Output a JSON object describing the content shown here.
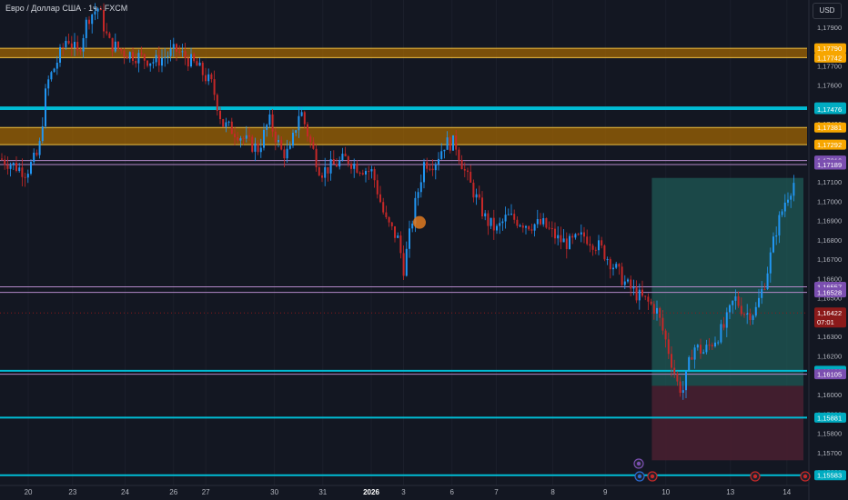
{
  "header": {
    "title": "Евро / Доллар США · 1ч · FXCM",
    "currency_button": "USD"
  },
  "colors": {
    "background": "#131722",
    "grid": "#1b1f2b",
    "bull": "#2196f3",
    "bear": "#c62828",
    "zone_fill": "#a86a00",
    "zone_border": "#f0c040",
    "cyan": "#00bcd4",
    "purple": "#b388c8",
    "target": "#1f5a56",
    "stop": "#4a2030",
    "price_tag": "#8b1a1a",
    "axis_text": "#b2b5be"
  },
  "axis": {
    "y_ticks": [
      "1,17900",
      "1,17700",
      "1,17600",
      "1,17400",
      "1,17300",
      "1,17100",
      "1,17000",
      "1,16900",
      "1,16800",
      "1,16700",
      "1,16600",
      "1,16500",
      "1,16300",
      "1,16200",
      "1,16000",
      "1,15900",
      "1,15800",
      "1,15700",
      "1,15600"
    ],
    "x_ticks": [
      "20",
      "23",
      "24",
      "26",
      "27",
      "30",
      "31",
      "2026",
      "3",
      "6",
      "7",
      "8",
      "9",
      "10",
      "13",
      "14"
    ]
  },
  "chart_data": {
    "type": "candlestick",
    "symbol": "EURUSD",
    "interval": "1h",
    "y_range": [
      1.1553,
      1.1804
    ],
    "current_price": 1.16422,
    "countdown": "07:01",
    "price_path": [
      [
        0,
        1.1722
      ],
      [
        0.03,
        1.1718
      ],
      [
        0.05,
        1.1715
      ],
      [
        0.075,
        1.1725
      ],
      [
        0.09,
        1.176
      ],
      [
        0.11,
        1.1772
      ],
      [
        0.13,
        1.1785
      ],
      [
        0.15,
        1.1776
      ],
      [
        0.17,
        1.1795
      ],
      [
        0.19,
        1.18
      ],
      [
        0.21,
        1.1782
      ],
      [
        0.24,
        1.1777
      ],
      [
        0.265,
        1.1775
      ],
      [
        0.3,
        1.1772
      ],
      [
        0.34,
        1.1778
      ],
      [
        0.38,
        1.177
      ],
      [
        0.41,
        1.176
      ],
      [
        0.43,
        1.174
      ],
      [
        0.46,
        1.1735
      ],
      [
        0.48,
        1.173
      ],
      [
        0.5,
        1.1727
      ],
      [
        0.52,
        1.1742
      ],
      [
        0.545,
        1.1725
      ],
      [
        0.56,
        1.1725
      ],
      [
        0.58,
        1.1748
      ],
      [
        0.6,
        1.173
      ],
      [
        0.62,
        1.1715
      ],
      [
        0.655,
        1.172
      ],
      [
        0.67,
        1.1722
      ],
      [
        0.69,
        1.1718
      ],
      [
        0.72,
        1.1715
      ],
      [
        0.745,
        1.169
      ],
      [
        0.77,
        1.168
      ],
      [
        0.78,
        1.1665
      ],
      [
        0.8,
        1.1695
      ],
      [
        0.82,
        1.172
      ],
      [
        0.84,
        1.172
      ],
      [
        0.86,
        1.173
      ],
      [
        0.88,
        1.173
      ],
      [
        0.9,
        1.1714
      ],
      [
        0.92,
        1.1702
      ],
      [
        0.94,
        1.169
      ],
      [
        0.96,
        1.1685
      ],
      [
        0.98,
        1.1692
      ],
      [
        1.02,
        1.1688
      ],
      [
        1.05,
        1.1688
      ],
      [
        1.08,
        1.168
      ],
      [
        1.1,
        1.1678
      ],
      [
        1.13,
        1.1682
      ],
      [
        1.16,
        1.1676
      ],
      [
        1.19,
        1.1665
      ],
      [
        1.21,
        1.1657
      ],
      [
        1.23,
        1.1652
      ],
      [
        1.26,
        1.1646
      ],
      [
        1.27,
        1.1643
      ],
      [
        1.29,
        1.1625
      ],
      [
        1.31,
        1.1605
      ],
      [
        1.32,
        1.1602
      ],
      [
        1.34,
        1.1625
      ],
      [
        1.36,
        1.1622
      ],
      [
        1.38,
        1.1628
      ],
      [
        1.4,
        1.1635
      ],
      [
        1.42,
        1.165
      ],
      [
        1.44,
        1.1642
      ],
      [
        1.46,
        1.1643
      ],
      [
        1.48,
        1.166
      ],
      [
        1.5,
        1.1685
      ],
      [
        1.52,
        1.1702
      ],
      [
        1.535,
        1.171
      ]
    ],
    "x_tick_positions": [
      0.035,
      0.09,
      0.155,
      0.215,
      0.255,
      0.34,
      0.4,
      0.46,
      0.5,
      0.56,
      0.615,
      0.685,
      0.75,
      0.825,
      0.905,
      0.975
    ],
    "x_tick_positions_note": "",
    "horizontal_zones": [
      {
        "name": "upper",
        "from": 1.17742,
        "to": 1.1779,
        "labels": [
          "1,17790",
          "1,17742"
        ]
      },
      {
        "name": "middle",
        "from": 1.17292,
        "to": 1.17381,
        "labels": [
          "1,17381",
          "1,17292"
        ]
      }
    ],
    "levels": [
      {
        "price": 1.17485,
        "label": "1,17485",
        "color": "cyan"
      },
      {
        "price": 1.17476,
        "label": "1,17476",
        "color": "cyan"
      },
      {
        "price": 1.1721,
        "label": "1,17210",
        "color": "purple"
      },
      {
        "price": 1.17189,
        "label": "1,17189",
        "color": "purple"
      },
      {
        "price": 1.16557,
        "label": "1,16557",
        "color": "purple"
      },
      {
        "price": 1.16528,
        "label": "1,16528",
        "color": "purple"
      },
      {
        "price": 1.16123,
        "label": "1,16123",
        "color": "cyan"
      },
      {
        "price": 1.16105,
        "label": "1,16105",
        "color": "purple"
      },
      {
        "price": 1.15881,
        "label": "1,15881",
        "color": "cyan"
      },
      {
        "price": 1.15583,
        "label": "1,15583",
        "color": "cyan"
      }
    ],
    "long_position": {
      "entry": 1.16045,
      "target": 1.1712,
      "stop": 1.1566,
      "start_index": 1.26
    }
  }
}
